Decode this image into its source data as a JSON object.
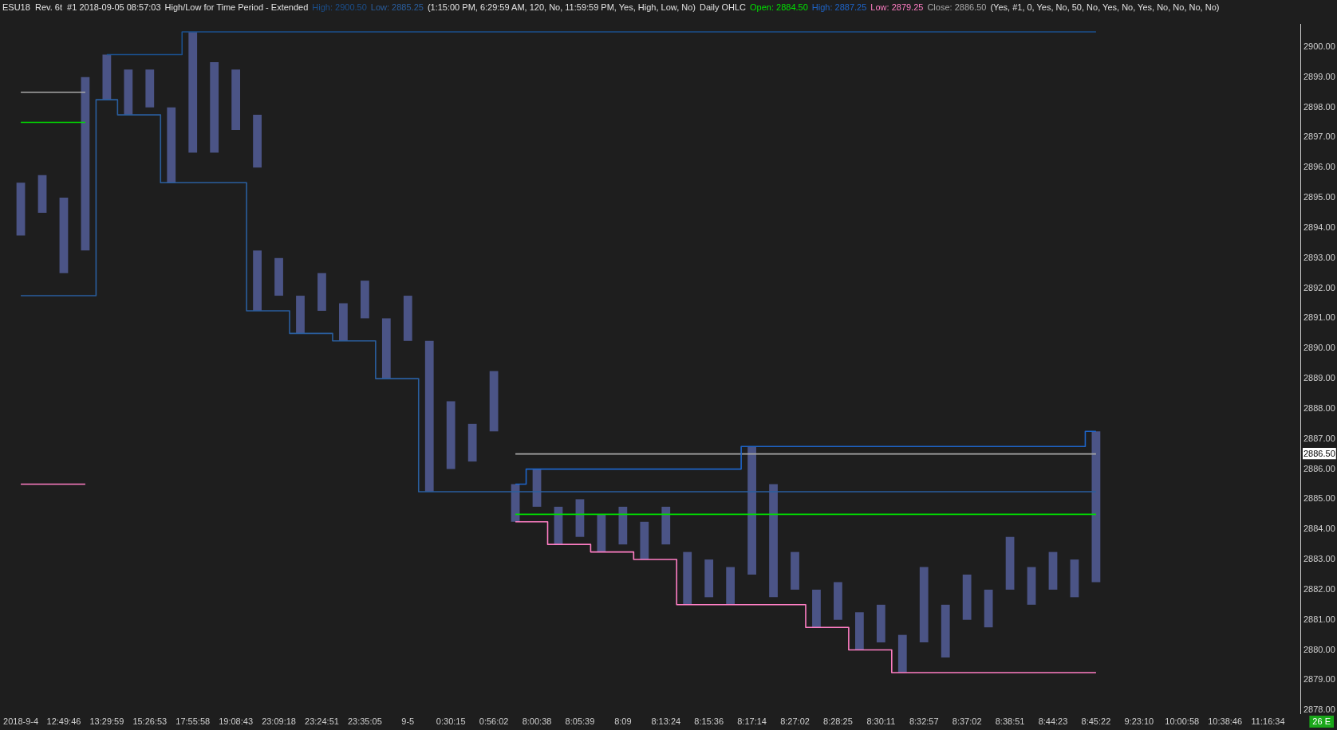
{
  "chart_data": {
    "type": "bar",
    "title": "ESU18  Rev. 6t  #1 2018-09-05 08:57:03",
    "annotations": [
      "High/Low for Time Period - Extended",
      "(1:15:00 PM, 6:29:59 AM, 120, No, 11:59:59 PM, Yes, High, Low, No)",
      "Daily OHLC",
      "(Yes, #1, 0, Yes, No, 50, No, Yes, No, Yes, No, No, No, No)",
      "26 E"
    ],
    "categories": [
      "2018-9-4",
      null,
      "12:49:46",
      null,
      "13:29:59",
      null,
      "15:26:53",
      null,
      "17:55:58",
      null,
      "19:08:43",
      null,
      "23:09:18",
      null,
      "23:24:51",
      null,
      "23:35:05",
      null,
      "9-5",
      null,
      "0:30:15",
      null,
      "0:56:02",
      null,
      "8:00:38",
      null,
      "8:05:39",
      null,
      "8:09",
      null,
      "8:13:24",
      null,
      "8:15:36",
      null,
      "8:17:14",
      null,
      "8:27:02",
      null,
      "8:28:25",
      null,
      "8:30:11",
      null,
      "8:32:57",
      null,
      "8:37:02",
      null,
      "8:38:51",
      null,
      "8:44:23",
      null,
      "8:45:22",
      null,
      "9:23:10",
      null,
      "10:00:58",
      null,
      "10:38:46",
      null,
      "11:16:34",
      null
    ],
    "series": [
      {
        "color": "#4b5486",
        "base": [
          2893.75,
          2894.5,
          2892.5,
          2893.25,
          2898.25,
          2897.75,
          2898.0,
          2895.5,
          2896.5,
          2896.5,
          2897.25,
          2896.0,
          null,
          null,
          null,
          null,
          null,
          null,
          null,
          null,
          null,
          null,
          null,
          null,
          null,
          null,
          null,
          null,
          null,
          null,
          null,
          null,
          null,
          null,
          null,
          null,
          null,
          null,
          null,
          null,
          null,
          null,
          null,
          null,
          null,
          null,
          null,
          null,
          null,
          null,
          null,
          null,
          null,
          null,
          null,
          null,
          null,
          null,
          null,
          null
        ],
        "values": [
          1.75,
          1.25,
          2.5,
          5.75,
          1.5,
          1.5,
          1.25,
          2.5,
          4.0,
          3.0,
          2.0,
          1.75,
          null,
          null,
          null,
          null,
          null,
          null,
          null,
          null,
          null,
          null,
          null,
          null,
          null,
          null,
          null,
          null,
          null,
          null,
          null,
          null,
          null,
          null,
          null,
          null,
          null,
          null,
          null,
          null,
          null,
          null,
          null,
          null,
          null,
          null,
          null,
          null,
          null,
          null,
          null,
          null,
          null,
          null,
          null,
          null,
          null,
          null,
          null,
          null
        ]
      },
      {
        "color": "#4b5486",
        "base": [
          null,
          null,
          null,
          null,
          null,
          null,
          null,
          null,
          null,
          null,
          null,
          2891.25,
          2891.75,
          2890.5,
          2891.25,
          2890.25,
          2891.0,
          2889.0,
          2890.25,
          2885.25,
          2886.0,
          2886.25,
          2887.25,
          2884.25,
          2884.75,
          2883.5,
          2883.75,
          2883.25,
          2883.5,
          2883.0,
          2883.5,
          2881.5,
          2881.75,
          2881.5,
          2882.5,
          2881.75,
          2882.0,
          2880.75,
          2881.0,
          2880.0,
          2880.25,
          2879.25,
          2880.25,
          2879.75,
          2881.0,
          2880.75,
          2882.0,
          2881.5,
          2882.0,
          2881.75,
          2882.25,
          null,
          null,
          null,
          null,
          null,
          null,
          null,
          null,
          null
        ],
        "values": [
          null,
          null,
          null,
          null,
          null,
          null,
          null,
          null,
          null,
          null,
          null,
          2.0,
          1.25,
          1.25,
          1.25,
          1.25,
          1.25,
          2.0,
          1.5,
          5.0,
          2.25,
          1.25,
          2.0,
          1.25,
          1.25,
          1.25,
          1.25,
          1.25,
          1.25,
          1.25,
          1.25,
          1.75,
          1.25,
          1.25,
          4.25,
          3.75,
          1.25,
          1.25,
          1.25,
          1.25,
          1.25,
          1.25,
          2.5,
          1.75,
          1.5,
          1.25,
          1.75,
          1.25,
          1.25,
          1.25,
          5.0,
          null,
          null,
          null,
          null,
          null,
          null,
          null,
          null,
          null
        ]
      },
      {
        "type": "step",
        "name": "High: 2900.50",
        "color": "#1b4f8c",
        "values": [
          null,
          null,
          null,
          null,
          2899.75,
          2899.75,
          2899.75,
          2899.75,
          2900.5,
          2900.5,
          2900.5,
          2900.5,
          2900.5,
          2900.5,
          2900.5,
          2900.5,
          2900.5,
          2900.5,
          2900.5,
          2900.5,
          2900.5,
          2900.5,
          2900.5,
          2900.5,
          2900.5,
          2900.5,
          2900.5,
          2900.5,
          2900.5,
          2900.5,
          2900.5,
          2900.5,
          2900.5,
          2900.5,
          2900.5,
          2900.5,
          2900.5,
          2900.5,
          2900.5,
          2900.5,
          2900.5,
          2900.5,
          2900.5,
          2900.5,
          2900.5,
          2900.5,
          2900.5,
          2900.5,
          2900.5,
          2900.5,
          2900.5,
          null,
          null,
          null,
          null,
          null,
          null,
          null,
          null,
          null
        ]
      },
      {
        "type": "step",
        "name": "Low: 2885.25",
        "color": "#2a5e9e",
        "values": [
          2891.75,
          2891.75,
          2891.75,
          2891.75,
          2898.25,
          2897.75,
          2897.75,
          2895.5,
          2895.5,
          2895.5,
          2895.5,
          2891.25,
          2891.25,
          2890.5,
          2890.5,
          2890.25,
          2890.25,
          2889.0,
          2889.0,
          2885.25,
          2885.25,
          2885.25,
          2885.25,
          2885.25,
          2885.25,
          2885.25,
          2885.25,
          2885.25,
          2885.25,
          2885.25,
          2885.25,
          2885.25,
          2885.25,
          2885.25,
          2885.25,
          2885.25,
          2885.25,
          2885.25,
          2885.25,
          2885.25,
          2885.25,
          2885.25,
          2885.25,
          2885.25,
          2885.25,
          2885.25,
          2885.25,
          2885.25,
          2885.25,
          2885.25,
          2885.25,
          null,
          null,
          null,
          null,
          null,
          null,
          null,
          null,
          null
        ]
      },
      {
        "type": "step",
        "name": "Open: 2884.50",
        "color": "#00e000",
        "values": [
          2897.5,
          2897.5,
          2897.5,
          2897.5,
          null,
          null,
          null,
          null,
          null,
          null,
          null,
          null,
          null,
          null,
          null,
          null,
          null,
          null,
          null,
          null,
          null,
          null,
          null,
          2884.5,
          2884.5,
          2884.5,
          2884.5,
          2884.5,
          2884.5,
          2884.5,
          2884.5,
          2884.5,
          2884.5,
          2884.5,
          2884.5,
          2884.5,
          2884.5,
          2884.5,
          2884.5,
          2884.5,
          2884.5,
          2884.5,
          2884.5,
          2884.5,
          2884.5,
          2884.5,
          2884.5,
          2884.5,
          2884.5,
          2884.5,
          2884.5,
          null,
          null,
          null,
          null,
          null,
          null,
          null,
          null,
          null
        ]
      },
      {
        "type": "step",
        "name": "High: 2887.25",
        "color": "#1e64c8",
        "values": [
          null,
          null,
          null,
          null,
          null,
          null,
          null,
          null,
          null,
          null,
          null,
          null,
          null,
          null,
          null,
          null,
          null,
          null,
          null,
          null,
          null,
          null,
          null,
          2885.5,
          2886.0,
          2886.0,
          2886.0,
          2886.0,
          2886.0,
          2886.0,
          2886.0,
          2886.0,
          2886.0,
          2886.0,
          2886.75,
          2886.75,
          2886.75,
          2886.75,
          2886.75,
          2886.75,
          2886.75,
          2886.75,
          2886.75,
          2886.75,
          2886.75,
          2886.75,
          2886.75,
          2886.75,
          2886.75,
          2886.75,
          2887.25,
          null,
          null,
          null,
          null,
          null,
          null,
          null,
          null,
          null
        ]
      },
      {
        "type": "step",
        "name": "Low: 2879.25",
        "color": "#ff7ec4",
        "values": [
          2885.5,
          2885.5,
          2885.5,
          2885.5,
          null,
          null,
          null,
          null,
          null,
          null,
          null,
          null,
          null,
          null,
          null,
          null,
          null,
          null,
          null,
          null,
          null,
          null,
          null,
          2884.25,
          2884.25,
          2883.5,
          2883.5,
          2883.25,
          2883.25,
          2883.0,
          2883.0,
          2881.5,
          2881.5,
          2881.5,
          2881.5,
          2881.5,
          2881.5,
          2880.75,
          2880.75,
          2880.0,
          2880.0,
          2879.25,
          2879.25,
          2879.25,
          2879.25,
          2879.25,
          2879.25,
          2879.25,
          2879.25,
          2879.25,
          2879.25,
          null,
          null,
          null,
          null,
          null,
          null,
          null,
          null,
          null
        ]
      },
      {
        "type": "step",
        "name": "Close: 2886.50",
        "color": "#a8a8a8",
        "values": [
          2898.5,
          2898.5,
          2898.5,
          2898.5,
          null,
          null,
          null,
          null,
          null,
          null,
          null,
          null,
          null,
          null,
          null,
          null,
          null,
          null,
          null,
          null,
          null,
          null,
          null,
          2886.5,
          2886.5,
          2886.5,
          2886.5,
          2886.5,
          2886.5,
          2886.5,
          2886.5,
          2886.5,
          2886.5,
          2886.5,
          2886.5,
          2886.5,
          2886.5,
          2886.5,
          2886.5,
          2886.5,
          2886.5,
          2886.5,
          2886.5,
          2886.5,
          2886.5,
          2886.5,
          2886.5,
          2886.5,
          2886.5,
          2886.5,
          2886.5,
          null,
          null,
          null,
          null,
          null,
          null,
          null,
          null,
          null
        ]
      }
    ],
    "ylim": [
      2877.9,
      2900.75
    ],
    "yticks": [
      {
        "value": 2878,
        "label": "2878.00"
      },
      {
        "value": 2879,
        "label": "2879.00"
      },
      {
        "value": 2880,
        "label": "2880.00"
      },
      {
        "value": 2881,
        "label": "2881.00"
      },
      {
        "value": 2882,
        "label": "2882.00"
      },
      {
        "value": 2883,
        "label": "2883.00"
      },
      {
        "value": 2884,
        "label": "2884.00"
      },
      {
        "value": 2885,
        "label": "2885.00"
      },
      {
        "value": 2886,
        "label": "2886.00"
      },
      {
        "value": 2886.5,
        "label": "2886.50"
      },
      {
        "value": 2887,
        "label": "2887.00"
      },
      {
        "value": 2888,
        "label": "2888.00"
      },
      {
        "value": 2889,
        "label": "2889.00"
      },
      {
        "value": 2890,
        "label": "2890.00"
      },
      {
        "value": 2891,
        "label": "2891.00"
      },
      {
        "value": 2892,
        "label": "2892.00"
      },
      {
        "value": 2893,
        "label": "2893.00"
      },
      {
        "value": 2894,
        "label": "2894.00"
      },
      {
        "value": 2895,
        "label": "2895.00"
      },
      {
        "value": 2896,
        "label": "2896.00"
      },
      {
        "value": 2897,
        "label": "2897.00"
      },
      {
        "value": 2898,
        "label": "2898.00"
      },
      {
        "value": 2899,
        "label": "2899.00"
      },
      {
        "value": 2900,
        "label": "2900.00"
      }
    ],
    "grid": false,
    "legend": "top left",
    "marker": "none",
    "line_style": "solid"
  }
}
